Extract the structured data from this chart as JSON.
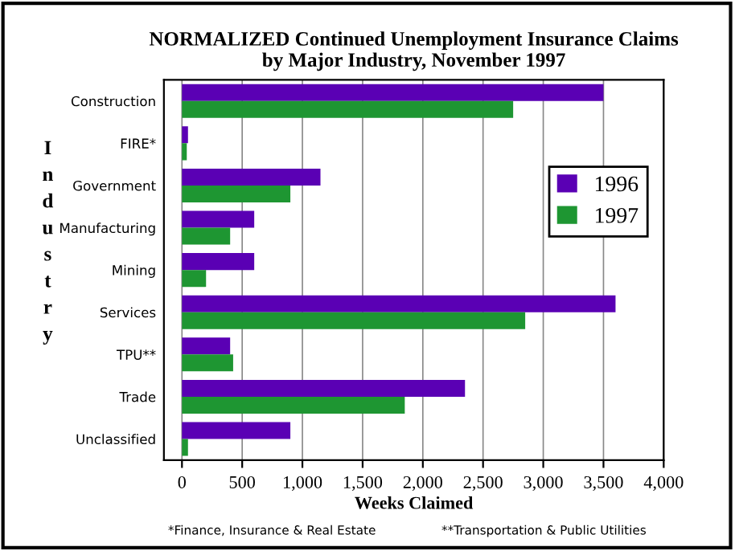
{
  "chart_data": {
    "type": "bar",
    "orientation": "horizontal",
    "title": "NORMALIZED Continued Unemployment Insurance Claims\nby Major Industry, November 1997",
    "xlabel": "Weeks Claimed",
    "ylabel": "Industry",
    "categories": [
      "Construction",
      "FIRE*",
      "Government",
      "Manufacturing",
      "Mining",
      "Services",
      "TPU**",
      "Trade",
      "Unclassified"
    ],
    "series": [
      {
        "name": "1996",
        "color": "#5a00b4",
        "values": [
          3500,
          50,
          1150,
          600,
          600,
          3600,
          400,
          2350,
          900
        ]
      },
      {
        "name": "1997",
        "color": "#1e9632",
        "values": [
          2750,
          40,
          900,
          400,
          200,
          2850,
          425,
          1850,
          50
        ]
      }
    ],
    "xlim": [
      -150,
      4000
    ],
    "xticks": [
      0,
      {
        "value": 500,
        "label": "500"
      },
      {
        "value": 1000,
        "label": "1,000"
      },
      {
        "value": 1500,
        "label": "1,500"
      },
      {
        "value": 2000,
        "label": "2,000"
      },
      {
        "value": 2500,
        "label": "2,500"
      },
      {
        "value": 3000,
        "label": "3,000"
      },
      {
        "value": 3500,
        "label": "3,500"
      },
      {
        "value": 4000,
        "label": "4,000"
      }
    ],
    "grid": "x",
    "legend": "right",
    "annotations": [
      "*Finance, Insurance & Real Estate",
      "**Transportation & Public Utilities"
    ]
  }
}
